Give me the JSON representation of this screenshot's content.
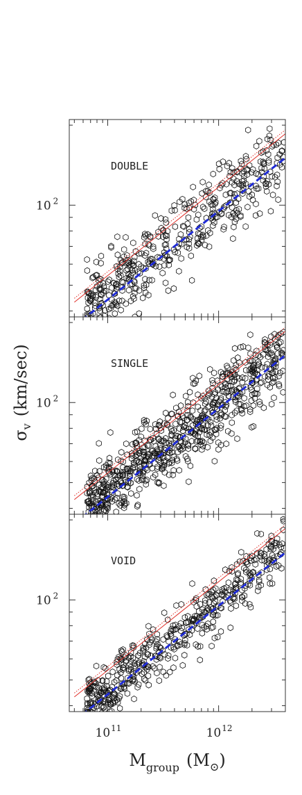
{
  "chart_data": {
    "type": "scatter",
    "x_scale": "log",
    "y_scale": "log",
    "xlim": [
      45000000000,
      4000000000000
    ],
    "ylim": [
      38,
      210
    ],
    "x_ticks": [
      {
        "value": 100000000000,
        "base": "10",
        "exp": "11"
      },
      {
        "value": 1000000000000,
        "base": "10",
        "exp": "12"
      }
    ],
    "y_tick": {
      "value": 100,
      "base": "10",
      "exp": "2"
    },
    "xlabel": {
      "main": "M",
      "sub": "group",
      "unit_open": "(M",
      "unit_sub": "⊙",
      "unit_close": ")"
    },
    "ylabel": {
      "main": "σ",
      "sub": "v",
      "unit": "(km/sec)"
    },
    "reference_lines": {
      "dashed_blue": {
        "color": "#1f2bd6",
        "slope": 0.333,
        "anchor_mass": 1000000000000,
        "anchor_sigma": 95
      },
      "solid_red": {
        "color": "#e0302a",
        "slope": 0.333,
        "anchor_mass": 1000000000000,
        "anchor_sigma": 117
      },
      "dotted_red": {
        "color": "#e0302a",
        "slope": 0.333,
        "anchor_mass": 1000000000000,
        "anchor_sigma": 121
      }
    },
    "panels": [
      {
        "label": "DOUBLE",
        "trend_anchor_sigma": 100,
        "scatter_dex": 0.07,
        "n_points": 470,
        "lines": [
          "dashed_blue",
          "solid_red",
          "dotted_red"
        ]
      },
      {
        "label": "SINGLE",
        "trend_anchor_sigma": 98,
        "scatter_dex": 0.07,
        "n_points": 780,
        "lines": [
          "dashed_blue",
          "solid_red",
          "dotted_red"
        ]
      },
      {
        "label": "VOID",
        "trend_anchor_sigma": 98,
        "scatter_dex": 0.055,
        "n_points": 520,
        "lines": [
          "dashed_blue",
          "solid_red",
          "dotted_red"
        ]
      }
    ]
  }
}
